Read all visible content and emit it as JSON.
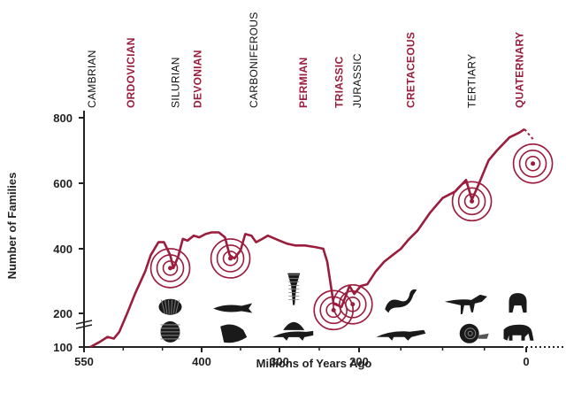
{
  "chart_data": {
    "type": "line",
    "title": "",
    "xlabel": "Millions of Years Ago",
    "ylabel": "Number of Families",
    "xlim": [
      550,
      0
    ],
    "ylim": [
      100,
      800
    ],
    "y_axis_break": true,
    "x_ticks": [
      {
        "value": 550,
        "label": "550"
      },
      {
        "value": 400,
        "label": "400"
      },
      {
        "value": 300,
        "label": "300"
      },
      {
        "value": 200,
        "label": "200"
      },
      {
        "value": 0,
        "label": "0"
      }
    ],
    "y_ticks": [
      {
        "value": 800,
        "label": "800"
      },
      {
        "value": 600,
        "label": "600"
      },
      {
        "value": 400,
        "label": "400"
      },
      {
        "value": 200,
        "label": "200"
      },
      {
        "value": 100,
        "label": "100"
      }
    ],
    "periods": [
      {
        "name": "CAMBRIAN",
        "mya": 540,
        "highlight": false
      },
      {
        "name": "ORDOVICIAN",
        "mya": 490,
        "highlight": true
      },
      {
        "name": "SILURIAN",
        "mya": 433,
        "highlight": false
      },
      {
        "name": "DEVONIAN",
        "mya": 405,
        "highlight": true
      },
      {
        "name": "CARBONIFEROUS",
        "mya": 333,
        "highlight": false
      },
      {
        "name": "PERMIAN",
        "mya": 270,
        "highlight": true
      },
      {
        "name": "TRIASSIC",
        "mya": 225,
        "highlight": true
      },
      {
        "name": "JURASSIC",
        "mya": 202,
        "highlight": false
      },
      {
        "name": "CRETACEOUS",
        "mya": 138,
        "highlight": true
      },
      {
        "name": "TERTIARY",
        "mya": 65,
        "highlight": false
      },
      {
        "name": "QUATERNARY",
        "mya": 8,
        "highlight": true
      }
    ],
    "series": [
      {
        "name": "Number of Families",
        "color": "#9b1c3c",
        "points": [
          [
            542,
            100
          ],
          [
            530,
            115
          ],
          [
            520,
            130
          ],
          [
            512,
            125
          ],
          [
            505,
            145
          ],
          [
            495,
            200
          ],
          [
            485,
            260
          ],
          [
            472,
            330
          ],
          [
            465,
            380
          ],
          [
            455,
            420
          ],
          [
            448,
            420
          ],
          [
            440,
            380
          ],
          [
            436,
            340
          ],
          [
            430,
            375
          ],
          [
            424,
            430
          ],
          [
            418,
            425
          ],
          [
            410,
            440
          ],
          [
            403,
            435
          ],
          [
            395,
            445
          ],
          [
            387,
            450
          ],
          [
            378,
            450
          ],
          [
            370,
            435
          ],
          [
            364,
            380
          ],
          [
            358,
            370
          ],
          [
            350,
            395
          ],
          [
            344,
            445
          ],
          [
            336,
            440
          ],
          [
            330,
            420
          ],
          [
            322,
            430
          ],
          [
            315,
            440
          ],
          [
            300,
            425
          ],
          [
            290,
            415
          ],
          [
            280,
            410
          ],
          [
            268,
            410
          ],
          [
            255,
            405
          ],
          [
            245,
            400
          ],
          [
            240,
            360
          ],
          [
            232,
            230
          ],
          [
            222,
            220
          ],
          [
            212,
            285
          ],
          [
            206,
            260
          ],
          [
            198,
            285
          ],
          [
            190,
            290
          ],
          [
            180,
            330
          ],
          [
            170,
            360
          ],
          [
            160,
            380
          ],
          [
            150,
            400
          ],
          [
            140,
            430
          ],
          [
            130,
            455
          ],
          [
            115,
            510
          ],
          [
            100,
            555
          ],
          [
            85,
            575
          ],
          [
            72,
            610
          ],
          [
            65,
            550
          ],
          [
            58,
            590
          ],
          [
            45,
            670
          ],
          [
            35,
            700
          ],
          [
            20,
            740
          ],
          [
            8,
            755
          ],
          [
            2,
            765
          ]
        ],
        "projection": [
          [
            2,
            765
          ],
          [
            -8,
            735
          ]
        ]
      }
    ],
    "extinction_markers": [
      {
        "mya": 440,
        "families": 340
      },
      {
        "mya": 363,
        "families": 370
      },
      {
        "mya": 232,
        "families": 210
      },
      {
        "mya": 208,
        "families": 228
      },
      {
        "mya": 65,
        "families": 545
      },
      {
        "mya": -8,
        "families": 660
      }
    ],
    "silhouettes": [
      {
        "name": "trilobite",
        "mya": 440,
        "families": 145
      },
      {
        "name": "brachiopod",
        "mya": 440,
        "families": 220
      },
      {
        "name": "placoderm-fish",
        "mya": 360,
        "families": 140
      },
      {
        "name": "coelacanth",
        "mya": 360,
        "families": 215
      },
      {
        "name": "crinoid",
        "mya": 282,
        "families": 275
      },
      {
        "name": "dimetrodon",
        "mya": 282,
        "families": 145
      },
      {
        "name": "ammonite-plesiosaur",
        "mya": 150,
        "families": 240
      },
      {
        "name": "crocodile",
        "mya": 150,
        "families": 135
      },
      {
        "name": "theropod-dinosaur",
        "mya": 70,
        "families": 225
      },
      {
        "name": "ammonite",
        "mya": 68,
        "families": 140
      },
      {
        "name": "gorilla",
        "mya": 10,
        "families": 230
      },
      {
        "name": "mammoth",
        "mya": 10,
        "families": 140
      }
    ]
  }
}
